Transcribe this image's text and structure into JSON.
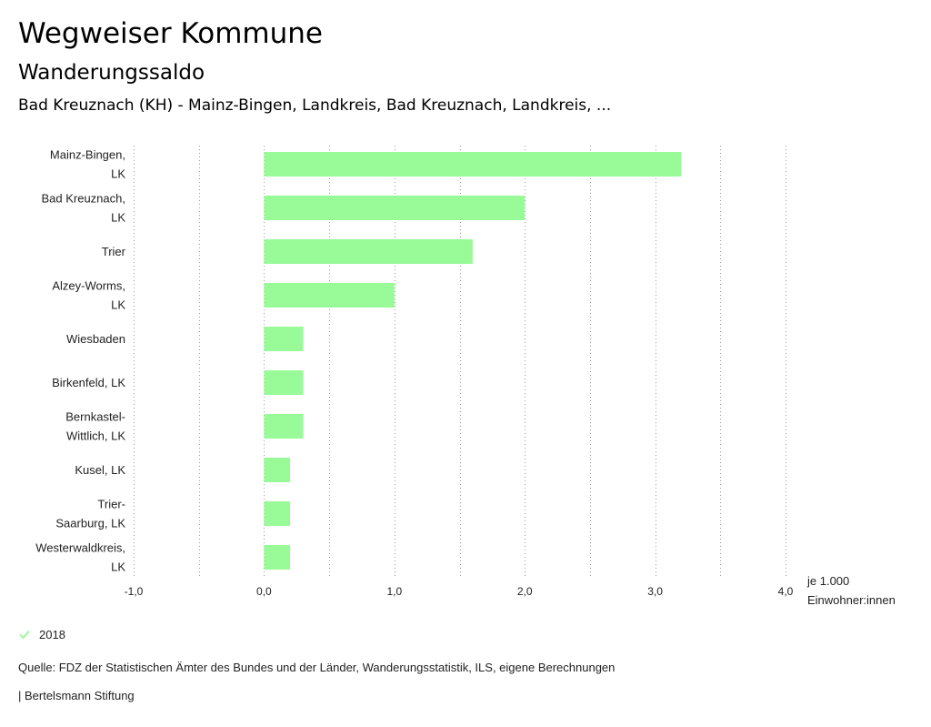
{
  "header": {
    "title": "Wegweiser Kommune",
    "subtitle": "Wanderungssaldo",
    "region": "Bad Kreuznach (KH) - Mainz-Bingen, Landkreis, Bad Kreuznach, Landkreis, ..."
  },
  "chart_data": {
    "type": "bar",
    "orientation": "horizontal",
    "categories": [
      [
        "Mainz-Bingen,",
        "LK"
      ],
      [
        "Bad Kreuznach,",
        "LK"
      ],
      [
        "Trier"
      ],
      [
        "Alzey-Worms,",
        "LK"
      ],
      [
        "Wiesbaden"
      ],
      [
        "Birkenfeld, LK"
      ],
      [
        "Bernkastel-",
        "Wittlich, LK"
      ],
      [
        "Kusel, LK"
      ],
      [
        "Trier-",
        "Saarburg, LK"
      ],
      [
        "Westerwaldkreis,",
        "LK"
      ]
    ],
    "series": [
      {
        "name": "2018",
        "values": [
          3.2,
          2.0,
          1.6,
          1.0,
          0.3,
          0.3,
          0.3,
          0.2,
          0.2,
          0.2
        ]
      }
    ],
    "xlim": [
      -1.0,
      4.0
    ],
    "xticks": [
      -1.0,
      0.0,
      1.0,
      2.0,
      3.0,
      4.0
    ],
    "xtick_labels": [
      "-1,0",
      "0,0",
      "1,0",
      "2,0",
      "3,0",
      "4,0"
    ],
    "xlabel": [
      "je 1.000",
      "Einwohner:innen"
    ],
    "grid": "vertical-dotted",
    "bar_color": "#98fb98",
    "legend_position": "bottom-left"
  },
  "legend": {
    "label": "2018",
    "color": "#98fb98"
  },
  "footer": {
    "source": "Quelle: FDZ der Statistischen Ämter des Bundes und der Länder, Wanderungsstatistik, ILS, eigene Berechnungen",
    "publisher": "| Bertelsmann Stiftung"
  }
}
